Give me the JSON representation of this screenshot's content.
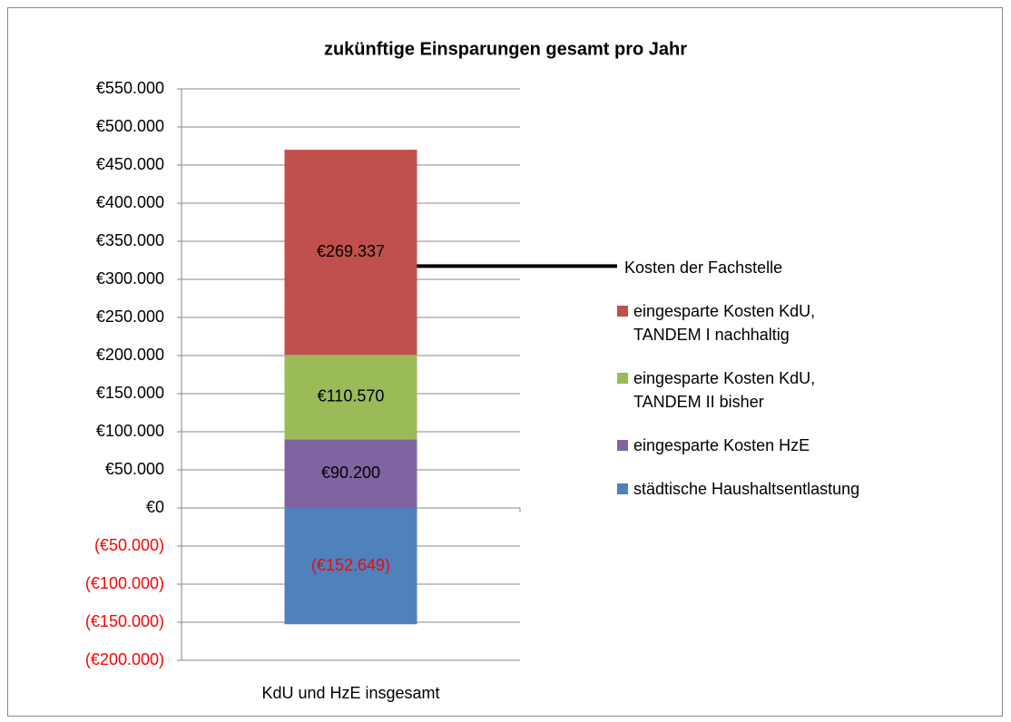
{
  "chart_data": {
    "type": "stacked_bar",
    "title": "zukünftige Einsparungen  gesamt pro Jahr",
    "categories": [
      "KdU und HzE insgesamt"
    ],
    "series": [
      {
        "name": "städtische Haushaltsentlastung",
        "color": "#4f81bd",
        "values": [
          -152649
        ],
        "value_labels": [
          "(€152.649)"
        ]
      },
      {
        "name": "eingesparte Kosten HzE",
        "color": "#8064a2",
        "values": [
          90200
        ],
        "value_labels": [
          "€90.200"
        ]
      },
      {
        "name": "eingesparte Kosten KdU, TANDEM II bisher",
        "color": "#9bbb59",
        "values": [
          110570
        ],
        "value_labels": [
          "€110.570"
        ]
      },
      {
        "name": "eingesparte Kosten KdU, TANDEM I nachhaltig",
        "color": "#c0504d",
        "values": [
          269337
        ],
        "value_labels": [
          "€269.337"
        ]
      },
      {
        "name": "Kosten der Fachstelle",
        "type": "line",
        "color": "#000000",
        "values": [
          317458
        ]
      }
    ],
    "ylim": [
      -200000,
      550000
    ],
    "yticks": [
      {
        "value": -200000,
        "label": "(€200.000)"
      },
      {
        "value": -150000,
        "label": "(€150.000)"
      },
      {
        "value": -100000,
        "label": "(€100.000)"
      },
      {
        "value": -50000,
        "label": "(€50.000)"
      },
      {
        "value": 0,
        "label": "€0"
      },
      {
        "value": 50000,
        "label": "€50.000"
      },
      {
        "value": 100000,
        "label": "€100.000"
      },
      {
        "value": 150000,
        "label": "€150.000"
      },
      {
        "value": 200000,
        "label": "€200.000"
      },
      {
        "value": 250000,
        "label": "€250.000"
      },
      {
        "value": 300000,
        "label": "€300.000"
      },
      {
        "value": 350000,
        "label": "€350.000"
      },
      {
        "value": 400000,
        "label": "€400.000"
      },
      {
        "value": 450000,
        "label": "€450.000"
      },
      {
        "value": 500000,
        "label": "€500.000"
      },
      {
        "value": 550000,
        "label": "€550.000"
      }
    ],
    "grid": true,
    "negative_color": "#ff0000"
  }
}
